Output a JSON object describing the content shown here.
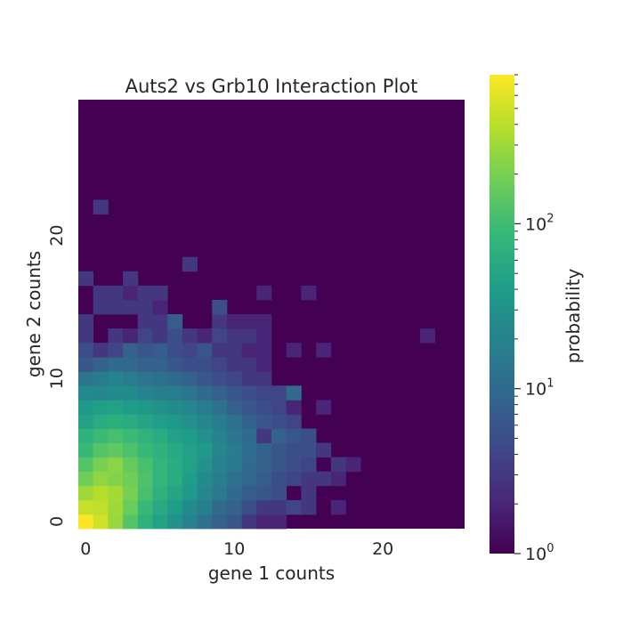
{
  "chart_data": {
    "type": "heatmap",
    "title": "Auts2 vs Grb10 Interaction Plot",
    "xlabel": "gene 1 counts",
    "ylabel": "gene 2 counts",
    "x_ticks": [
      "0",
      "10",
      "20"
    ],
    "y_ticks": [
      "0",
      "10",
      "20"
    ],
    "x_tick_values": [
      0,
      10,
      20
    ],
    "y_tick_values": [
      0,
      10,
      20
    ],
    "xlim": [
      0,
      26
    ],
    "ylim": [
      0,
      30
    ],
    "colorbar": {
      "label": "probability",
      "scale": "log",
      "min": 1,
      "max": 800,
      "ticks": [
        {
          "value": 1,
          "base": "10",
          "exp": "0"
        },
        {
          "value": 10,
          "base": "10",
          "exp": "1"
        },
        {
          "value": 100,
          "base": "10",
          "exp": "2"
        }
      ]
    },
    "colormap": "viridis",
    "background_value": 1,
    "cells": [
      {
        "x": 0,
        "y": 0,
        "v": 800
      },
      {
        "x": 1,
        "y": 0,
        "v": 500
      },
      {
        "x": 2,
        "y": 0,
        "v": 280
      },
      {
        "x": 3,
        "y": 0,
        "v": 130
      },
      {
        "x": 4,
        "y": 0,
        "v": 70
      },
      {
        "x": 5,
        "y": 0,
        "v": 45
      },
      {
        "x": 6,
        "y": 0,
        "v": 30
      },
      {
        "x": 7,
        "y": 0,
        "v": 20
      },
      {
        "x": 8,
        "y": 0,
        "v": 12
      },
      {
        "x": 9,
        "y": 0,
        "v": 8
      },
      {
        "x": 10,
        "y": 0,
        "v": 6
      },
      {
        "x": 11,
        "y": 0,
        "v": 3
      },
      {
        "x": 12,
        "y": 0,
        "v": 2
      },
      {
        "x": 13,
        "y": 0,
        "v": 2
      },
      {
        "x": 0,
        "y": 1,
        "v": 450
      },
      {
        "x": 1,
        "y": 1,
        "v": 420
      },
      {
        "x": 2,
        "y": 1,
        "v": 300
      },
      {
        "x": 3,
        "y": 1,
        "v": 170
      },
      {
        "x": 4,
        "y": 1,
        "v": 90
      },
      {
        "x": 5,
        "y": 1,
        "v": 55
      },
      {
        "x": 6,
        "y": 1,
        "v": 40
      },
      {
        "x": 7,
        "y": 1,
        "v": 25
      },
      {
        "x": 8,
        "y": 1,
        "v": 18
      },
      {
        "x": 9,
        "y": 1,
        "v": 10
      },
      {
        "x": 10,
        "y": 1,
        "v": 8
      },
      {
        "x": 11,
        "y": 1,
        "v": 5
      },
      {
        "x": 12,
        "y": 1,
        "v": 3
      },
      {
        "x": 13,
        "y": 1,
        "v": 3
      },
      {
        "x": 14,
        "y": 1,
        "v": 4
      },
      {
        "x": 15,
        "y": 1,
        "v": 3
      },
      {
        "x": 17,
        "y": 1,
        "v": 2
      },
      {
        "x": 0,
        "y": 2,
        "v": 300
      },
      {
        "x": 1,
        "y": 2,
        "v": 380
      },
      {
        "x": 2,
        "y": 2,
        "v": 320
      },
      {
        "x": 3,
        "y": 2,
        "v": 200
      },
      {
        "x": 4,
        "y": 2,
        "v": 110
      },
      {
        "x": 5,
        "y": 2,
        "v": 70
      },
      {
        "x": 6,
        "y": 2,
        "v": 50
      },
      {
        "x": 7,
        "y": 2,
        "v": 35
      },
      {
        "x": 8,
        "y": 2,
        "v": 22
      },
      {
        "x": 9,
        "y": 2,
        "v": 15
      },
      {
        "x": 10,
        "y": 2,
        "v": 10
      },
      {
        "x": 11,
        "y": 2,
        "v": 7
      },
      {
        "x": 12,
        "y": 2,
        "v": 6
      },
      {
        "x": 13,
        "y": 2,
        "v": 5
      },
      {
        "x": 15,
        "y": 2,
        "v": 3
      },
      {
        "x": 0,
        "y": 3,
        "v": 180
      },
      {
        "x": 1,
        "y": 3,
        "v": 260
      },
      {
        "x": 2,
        "y": 3,
        "v": 220
      },
      {
        "x": 3,
        "y": 3,
        "v": 180
      },
      {
        "x": 4,
        "y": 3,
        "v": 120
      },
      {
        "x": 5,
        "y": 3,
        "v": 80
      },
      {
        "x": 6,
        "y": 3,
        "v": 60
      },
      {
        "x": 7,
        "y": 3,
        "v": 40
      },
      {
        "x": 8,
        "y": 3,
        "v": 25
      },
      {
        "x": 9,
        "y": 3,
        "v": 18
      },
      {
        "x": 10,
        "y": 3,
        "v": 12
      },
      {
        "x": 11,
        "y": 3,
        "v": 9
      },
      {
        "x": 12,
        "y": 3,
        "v": 7
      },
      {
        "x": 13,
        "y": 3,
        "v": 5
      },
      {
        "x": 14,
        "y": 3,
        "v": 4
      },
      {
        "x": 15,
        "y": 3,
        "v": 3
      },
      {
        "x": 16,
        "y": 3,
        "v": 3
      },
      {
        "x": 17,
        "y": 3,
        "v": 2
      },
      {
        "x": 0,
        "y": 4,
        "v": 130
      },
      {
        "x": 1,
        "y": 4,
        "v": 200
      },
      {
        "x": 2,
        "y": 4,
        "v": 240
      },
      {
        "x": 3,
        "y": 4,
        "v": 160
      },
      {
        "x": 4,
        "y": 4,
        "v": 110
      },
      {
        "x": 5,
        "y": 4,
        "v": 80
      },
      {
        "x": 6,
        "y": 4,
        "v": 60
      },
      {
        "x": 7,
        "y": 4,
        "v": 45
      },
      {
        "x": 8,
        "y": 4,
        "v": 30
      },
      {
        "x": 9,
        "y": 4,
        "v": 20
      },
      {
        "x": 10,
        "y": 4,
        "v": 15
      },
      {
        "x": 11,
        "y": 4,
        "v": 10
      },
      {
        "x": 12,
        "y": 4,
        "v": 8
      },
      {
        "x": 13,
        "y": 4,
        "v": 6
      },
      {
        "x": 14,
        "y": 4,
        "v": 5
      },
      {
        "x": 15,
        "y": 4,
        "v": 4
      },
      {
        "x": 17,
        "y": 4,
        "v": 3
      },
      {
        "x": 18,
        "y": 4,
        "v": 2
      },
      {
        "x": 0,
        "y": 5,
        "v": 90
      },
      {
        "x": 1,
        "y": 5,
        "v": 130
      },
      {
        "x": 2,
        "y": 5,
        "v": 150
      },
      {
        "x": 3,
        "y": 5,
        "v": 120
      },
      {
        "x": 4,
        "y": 5,
        "v": 90
      },
      {
        "x": 5,
        "y": 5,
        "v": 70
      },
      {
        "x": 6,
        "y": 5,
        "v": 55
      },
      {
        "x": 7,
        "y": 5,
        "v": 45
      },
      {
        "x": 8,
        "y": 5,
        "v": 35
      },
      {
        "x": 9,
        "y": 5,
        "v": 22
      },
      {
        "x": 10,
        "y": 5,
        "v": 16
      },
      {
        "x": 11,
        "y": 5,
        "v": 11
      },
      {
        "x": 12,
        "y": 5,
        "v": 8
      },
      {
        "x": 13,
        "y": 5,
        "v": 6
      },
      {
        "x": 14,
        "y": 5,
        "v": 5
      },
      {
        "x": 15,
        "y": 5,
        "v": 5
      },
      {
        "x": 16,
        "y": 5,
        "v": 3
      },
      {
        "x": 0,
        "y": 6,
        "v": 70
      },
      {
        "x": 1,
        "y": 6,
        "v": 95
      },
      {
        "x": 2,
        "y": 6,
        "v": 110
      },
      {
        "x": 3,
        "y": 6,
        "v": 95
      },
      {
        "x": 4,
        "y": 6,
        "v": 75
      },
      {
        "x": 5,
        "y": 6,
        "v": 60
      },
      {
        "x": 6,
        "y": 6,
        "v": 45
      },
      {
        "x": 7,
        "y": 6,
        "v": 40
      },
      {
        "x": 8,
        "y": 6,
        "v": 28
      },
      {
        "x": 9,
        "y": 6,
        "v": 20
      },
      {
        "x": 10,
        "y": 6,
        "v": 14
      },
      {
        "x": 11,
        "y": 6,
        "v": 10
      },
      {
        "x": 12,
        "y": 6,
        "v": 3
      },
      {
        "x": 13,
        "y": 6,
        "v": 8
      },
      {
        "x": 14,
        "y": 6,
        "v": 6
      },
      {
        "x": 15,
        "y": 6,
        "v": 5
      },
      {
        "x": 0,
        "y": 7,
        "v": 45
      },
      {
        "x": 1,
        "y": 7,
        "v": 60
      },
      {
        "x": 2,
        "y": 7,
        "v": 65
      },
      {
        "x": 3,
        "y": 7,
        "v": 60
      },
      {
        "x": 4,
        "y": 7,
        "v": 50
      },
      {
        "x": 5,
        "y": 7,
        "v": 42
      },
      {
        "x": 6,
        "y": 7,
        "v": 35
      },
      {
        "x": 7,
        "y": 7,
        "v": 28
      },
      {
        "x": 8,
        "y": 7,
        "v": 22
      },
      {
        "x": 9,
        "y": 7,
        "v": 16
      },
      {
        "x": 10,
        "y": 7,
        "v": 12
      },
      {
        "x": 11,
        "y": 7,
        "v": 8
      },
      {
        "x": 12,
        "y": 7,
        "v": 6
      },
      {
        "x": 13,
        "y": 7,
        "v": 5
      },
      {
        "x": 14,
        "y": 7,
        "v": 4
      },
      {
        "x": 0,
        "y": 8,
        "v": 35
      },
      {
        "x": 1,
        "y": 8,
        "v": 42
      },
      {
        "x": 2,
        "y": 8,
        "v": 45
      },
      {
        "x": 3,
        "y": 8,
        "v": 40
      },
      {
        "x": 4,
        "y": 8,
        "v": 35
      },
      {
        "x": 5,
        "y": 8,
        "v": 30
      },
      {
        "x": 6,
        "y": 8,
        "v": 25
      },
      {
        "x": 7,
        "y": 8,
        "v": 22
      },
      {
        "x": 8,
        "y": 8,
        "v": 16
      },
      {
        "x": 9,
        "y": 8,
        "v": 12
      },
      {
        "x": 10,
        "y": 8,
        "v": 8
      },
      {
        "x": 11,
        "y": 8,
        "v": 6
      },
      {
        "x": 12,
        "y": 8,
        "v": 5
      },
      {
        "x": 13,
        "y": 8,
        "v": 4
      },
      {
        "x": 14,
        "y": 8,
        "v": 2
      },
      {
        "x": 16,
        "y": 8,
        "v": 2
      },
      {
        "x": 0,
        "y": 9,
        "v": 25
      },
      {
        "x": 1,
        "y": 9,
        "v": 22
      },
      {
        "x": 2,
        "y": 9,
        "v": 25
      },
      {
        "x": 3,
        "y": 9,
        "v": 25
      },
      {
        "x": 4,
        "y": 9,
        "v": 20
      },
      {
        "x": 5,
        "y": 9,
        "v": 18
      },
      {
        "x": 6,
        "y": 9,
        "v": 16
      },
      {
        "x": 7,
        "y": 9,
        "v": 14
      },
      {
        "x": 8,
        "y": 9,
        "v": 10
      },
      {
        "x": 9,
        "y": 9,
        "v": 8
      },
      {
        "x": 10,
        "y": 9,
        "v": 6
      },
      {
        "x": 11,
        "y": 9,
        "v": 5
      },
      {
        "x": 12,
        "y": 9,
        "v": 4
      },
      {
        "x": 13,
        "y": 9,
        "v": 4
      },
      {
        "x": 14,
        "y": 9,
        "v": 10
      },
      {
        "x": 0,
        "y": 10,
        "v": 14
      },
      {
        "x": 1,
        "y": 10,
        "v": 16
      },
      {
        "x": 2,
        "y": 10,
        "v": 20
      },
      {
        "x": 3,
        "y": 10,
        "v": 16
      },
      {
        "x": 4,
        "y": 10,
        "v": 14
      },
      {
        "x": 5,
        "y": 10,
        "v": 12
      },
      {
        "x": 6,
        "y": 10,
        "v": 10
      },
      {
        "x": 7,
        "y": 10,
        "v": 8
      },
      {
        "x": 8,
        "y": 10,
        "v": 6
      },
      {
        "x": 9,
        "y": 10,
        "v": 5
      },
      {
        "x": 10,
        "y": 10,
        "v": 4
      },
      {
        "x": 11,
        "y": 10,
        "v": 3
      },
      {
        "x": 12,
        "y": 10,
        "v": 3
      },
      {
        "x": 0,
        "y": 11,
        "v": 6
      },
      {
        "x": 1,
        "y": 11,
        "v": 8
      },
      {
        "x": 2,
        "y": 11,
        "v": 10
      },
      {
        "x": 3,
        "y": 11,
        "v": 9
      },
      {
        "x": 4,
        "y": 11,
        "v": 8
      },
      {
        "x": 5,
        "y": 11,
        "v": 8
      },
      {
        "x": 6,
        "y": 11,
        "v": 6
      },
      {
        "x": 7,
        "y": 11,
        "v": 5
      },
      {
        "x": 8,
        "y": 11,
        "v": 5
      },
      {
        "x": 9,
        "y": 11,
        "v": 4
      },
      {
        "x": 10,
        "y": 11,
        "v": 3
      },
      {
        "x": 11,
        "y": 11,
        "v": 3
      },
      {
        "x": 12,
        "y": 11,
        "v": 2
      },
      {
        "x": 0,
        "y": 12,
        "v": 5
      },
      {
        "x": 1,
        "y": 12,
        "v": 3
      },
      {
        "x": 2,
        "y": 12,
        "v": 4
      },
      {
        "x": 3,
        "y": 12,
        "v": 8
      },
      {
        "x": 4,
        "y": 12,
        "v": 6
      },
      {
        "x": 5,
        "y": 12,
        "v": 7
      },
      {
        "x": 6,
        "y": 12,
        "v": 5
      },
      {
        "x": 7,
        "y": 12,
        "v": 4
      },
      {
        "x": 8,
        "y": 12,
        "v": 6
      },
      {
        "x": 9,
        "y": 12,
        "v": 3
      },
      {
        "x": 10,
        "y": 12,
        "v": 3
      },
      {
        "x": 11,
        "y": 12,
        "v": 2
      },
      {
        "x": 12,
        "y": 12,
        "v": 2
      },
      {
        "x": 14,
        "y": 12,
        "v": 2
      },
      {
        "x": 16,
        "y": 12,
        "v": 2
      },
      {
        "x": 0,
        "y": 13,
        "v": 3
      },
      {
        "x": 2,
        "y": 13,
        "v": 3
      },
      {
        "x": 3,
        "y": 13,
        "v": 2
      },
      {
        "x": 4,
        "y": 13,
        "v": 4
      },
      {
        "x": 5,
        "y": 13,
        "v": 3
      },
      {
        "x": 6,
        "y": 13,
        "v": 5
      },
      {
        "x": 7,
        "y": 13,
        "v": 3
      },
      {
        "x": 8,
        "y": 13,
        "v": 2
      },
      {
        "x": 9,
        "y": 13,
        "v": 4
      },
      {
        "x": 10,
        "y": 13,
        "v": 3
      },
      {
        "x": 11,
        "y": 13,
        "v": 3
      },
      {
        "x": 12,
        "y": 13,
        "v": 2
      },
      {
        "x": 23,
        "y": 13,
        "v": 2
      },
      {
        "x": 0,
        "y": 14,
        "v": 3
      },
      {
        "x": 4,
        "y": 14,
        "v": 3
      },
      {
        "x": 5,
        "y": 14,
        "v": 3
      },
      {
        "x": 6,
        "y": 14,
        "v": 7
      },
      {
        "x": 9,
        "y": 14,
        "v": 3
      },
      {
        "x": 10,
        "y": 14,
        "v": 2
      },
      {
        "x": 11,
        "y": 14,
        "v": 2
      },
      {
        "x": 12,
        "y": 14,
        "v": 2
      },
      {
        "x": 1,
        "y": 15,
        "v": 3
      },
      {
        "x": 2,
        "y": 15,
        "v": 3
      },
      {
        "x": 3,
        "y": 15,
        "v": 3
      },
      {
        "x": 4,
        "y": 15,
        "v": 3
      },
      {
        "x": 5,
        "y": 15,
        "v": 2
      },
      {
        "x": 9,
        "y": 15,
        "v": 5
      },
      {
        "x": 1,
        "y": 16,
        "v": 3
      },
      {
        "x": 2,
        "y": 16,
        "v": 3
      },
      {
        "x": 3,
        "y": 16,
        "v": 2
      },
      {
        "x": 4,
        "y": 16,
        "v": 3
      },
      {
        "x": 5,
        "y": 16,
        "v": 3
      },
      {
        "x": 12,
        "y": 16,
        "v": 2
      },
      {
        "x": 15,
        "y": 16,
        "v": 2
      },
      {
        "x": 0,
        "y": 17,
        "v": 3
      },
      {
        "x": 3,
        "y": 17,
        "v": 3
      },
      {
        "x": 7,
        "y": 18,
        "v": 3
      },
      {
        "x": 1,
        "y": 22,
        "v": 3
      }
    ]
  }
}
